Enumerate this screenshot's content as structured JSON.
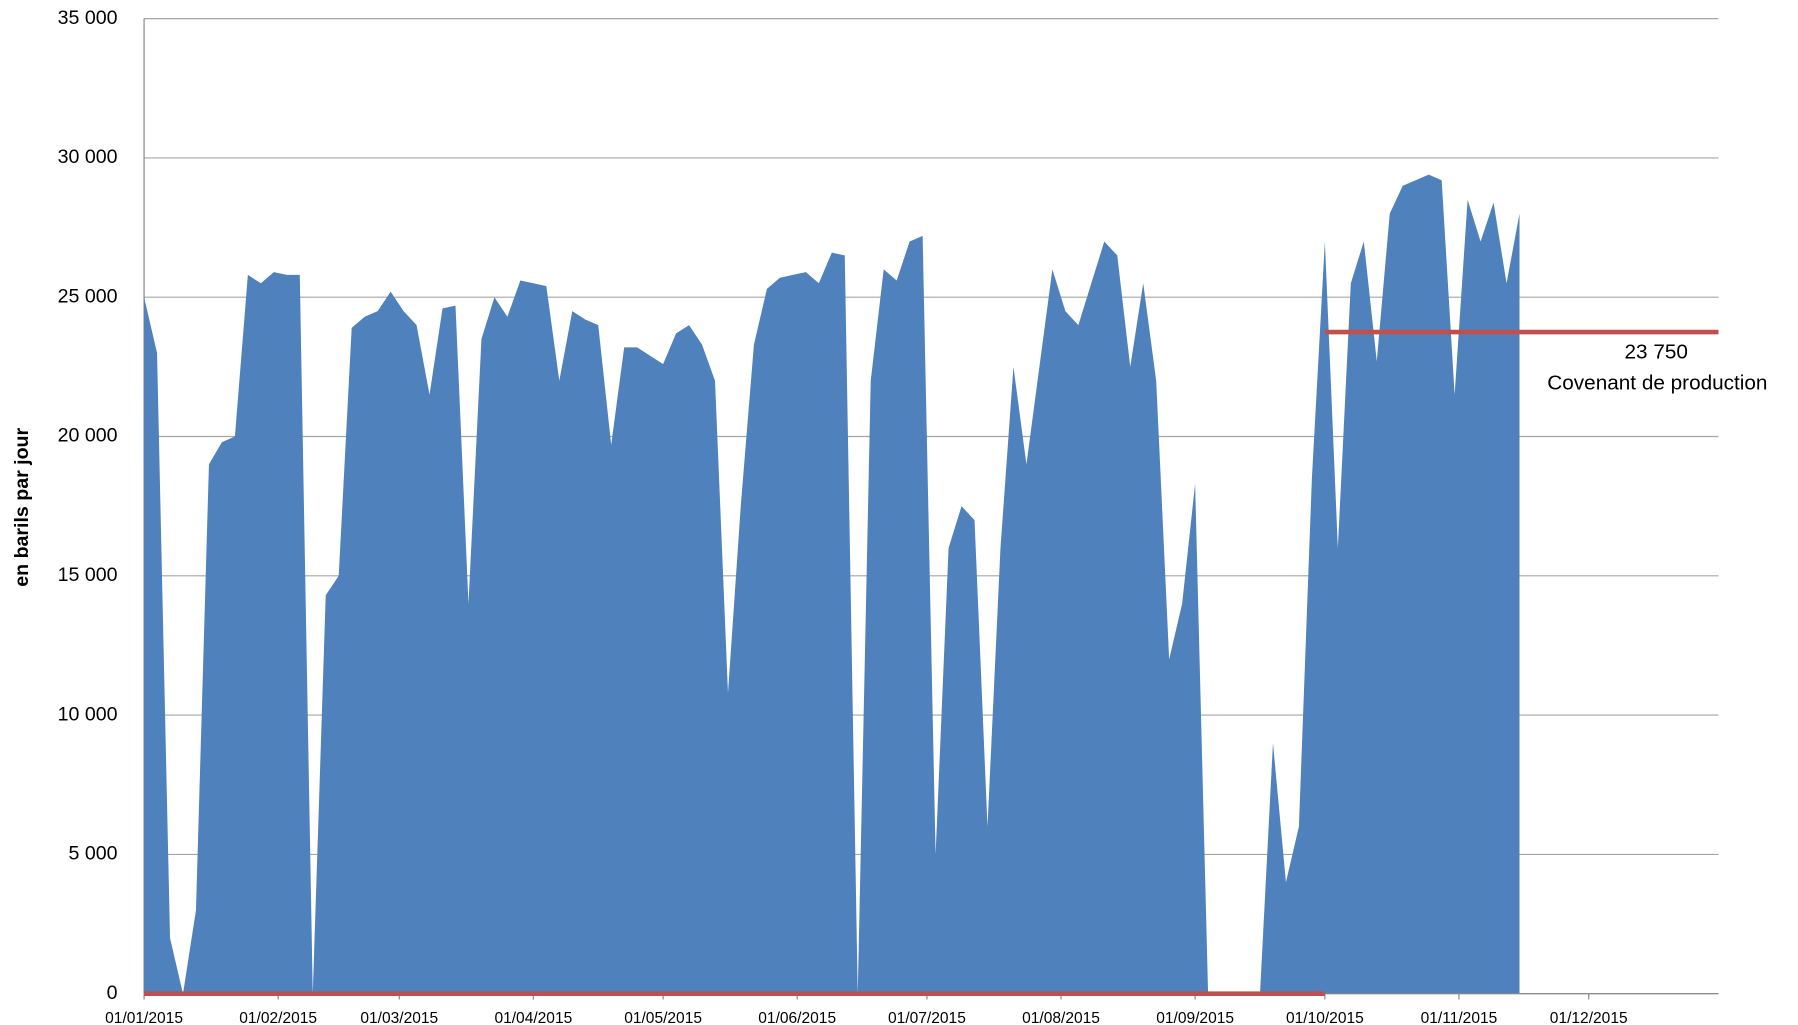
{
  "chart_data": {
    "type": "area",
    "y_label": "en barils par jour",
    "xlim": [
      "01/01/2015",
      "31/12/2015"
    ],
    "xticks": [
      "01/01/2015",
      "01/02/2015",
      "01/03/2015",
      "01/04/2015",
      "01/05/2015",
      "01/06/2015",
      "01/07/2015",
      "01/08/2015",
      "01/09/2015",
      "01/10/2015",
      "01/11/2015",
      "01/12/2015"
    ],
    "ylim": [
      0,
      35000
    ],
    "yticks": [
      0,
      {
        "value": 5000,
        "label": "5 000"
      },
      {
        "value": 10000,
        "label": "10 000"
      },
      {
        "value": 15000,
        "label": "15 000"
      },
      {
        "value": 20000,
        "label": "20 000"
      },
      {
        "value": 25000,
        "label": "25 000"
      },
      {
        "value": 30000,
        "label": "30 000"
      },
      {
        "value": 35000,
        "label": "35 000"
      }
    ],
    "grid": true,
    "x": [
      "01/01/2015",
      "04/01/2015",
      "07/01/2015",
      "10/01/2015",
      "13/01/2015",
      "16/01/2015",
      "19/01/2015",
      "22/01/2015",
      "25/01/2015",
      "28/01/2015",
      "31/01/2015",
      "03/02/2015",
      "06/02/2015",
      "09/02/2015",
      "12/02/2015",
      "15/02/2015",
      "18/02/2015",
      "21/02/2015",
      "24/02/2015",
      "27/02/2015",
      "02/03/2015",
      "05/03/2015",
      "08/03/2015",
      "11/03/2015",
      "14/03/2015",
      "17/03/2015",
      "20/03/2015",
      "23/03/2015",
      "26/03/2015",
      "29/03/2015",
      "01/04/2015",
      "04/04/2015",
      "07/04/2015",
      "10/04/2015",
      "13/04/2015",
      "16/04/2015",
      "19/04/2015",
      "22/04/2015",
      "25/04/2015",
      "28/04/2015",
      "01/05/2015",
      "04/05/2015",
      "07/05/2015",
      "10/05/2015",
      "13/05/2015",
      "16/05/2015",
      "19/05/2015",
      "22/05/2015",
      "25/05/2015",
      "28/05/2015",
      "31/05/2015",
      "03/06/2015",
      "06/06/2015",
      "09/06/2015",
      "12/06/2015",
      "15/06/2015",
      "18/06/2015",
      "21/06/2015",
      "24/06/2015",
      "27/06/2015",
      "30/06/2015",
      "03/07/2015",
      "06/07/2015",
      "09/07/2015",
      "12/07/2015",
      "15/07/2015",
      "18/07/2015",
      "21/07/2015",
      "24/07/2015",
      "27/07/2015",
      "30/07/2015",
      "02/08/2015",
      "05/08/2015",
      "08/08/2015",
      "11/08/2015",
      "14/08/2015",
      "17/08/2015",
      "20/08/2015",
      "23/08/2015",
      "26/08/2015",
      "29/08/2015",
      "01/09/2015",
      "04/09/2015",
      "07/09/2015",
      "10/09/2015",
      "13/09/2015",
      "16/09/2015",
      "19/09/2015",
      "22/09/2015",
      "25/09/2015",
      "28/09/2015",
      "01/10/2015",
      "04/10/2015",
      "07/10/2015",
      "10/10/2015",
      "13/10/2015",
      "16/10/2015",
      "19/10/2015",
      "22/10/2015",
      "25/10/2015",
      "28/10/2015",
      "31/10/2015",
      "03/11/2015",
      "06/11/2015",
      "09/11/2015",
      "12/11/2015",
      "15/11/2015"
    ],
    "series": [
      {
        "color": "#4f81bd",
        "values": [
          25000,
          23000,
          2000,
          0,
          3000,
          19000,
          19800,
          20000,
          25800,
          25500,
          25900,
          25800,
          25800,
          0,
          14300,
          15000,
          23900,
          24300,
          24500,
          25200,
          24500,
          24000,
          21500,
          24600,
          24700,
          14000,
          23500,
          25000,
          24300,
          25600,
          25500,
          25400,
          22000,
          24500,
          24200,
          24000,
          19700,
          23200,
          23200,
          22900,
          22600,
          23700,
          24000,
          23300,
          22000,
          10800,
          17600,
          23300,
          25300,
          25700,
          25800,
          25900,
          25500,
          26600,
          26500,
          0,
          22000,
          26000,
          25600,
          27000,
          27200,
          5000,
          16000,
          17500,
          17000,
          6000,
          16000,
          22500,
          19000,
          22500,
          26000,
          24500,
          24000,
          25500,
          27000,
          26500,
          22500,
          25500,
          22000,
          12000,
          14000,
          18300,
          0,
          0,
          0,
          0,
          0,
          9000,
          4000,
          6000,
          18500,
          27000,
          16000,
          25500,
          27000,
          22700,
          28000,
          29000,
          29200,
          29400,
          29200,
          21500,
          28500,
          27000,
          28400,
          25500,
          28000
        ]
      }
    ],
    "covenant": {
      "name": "Covenant de production",
      "color": "#c0504d",
      "segments": [
        {
          "start": "01/01/2015",
          "end": "01/10/2015",
          "value": 0
        },
        {
          "start": "01/10/2015",
          "end": "31/12/2015",
          "value": 23750,
          "value_label": "23 750"
        }
      ]
    }
  }
}
